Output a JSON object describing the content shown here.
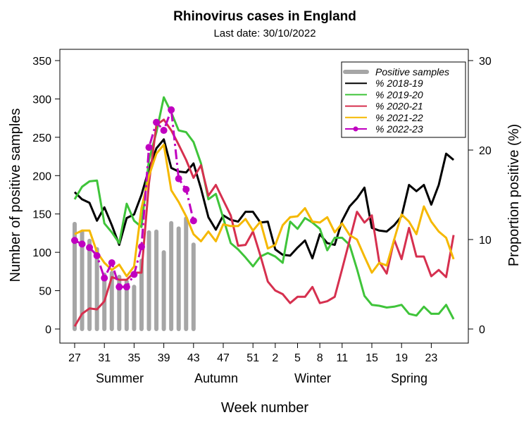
{
  "chart_data": {
    "type": "line",
    "title": "Rhinovirus cases in England",
    "subtitle": "Last date: 30/10/2022",
    "xlabel": "Week number",
    "ylabel_left": "Number of positive samples",
    "ylabel_right": "Proportion positive (%)",
    "ylim_left": [
      0,
      350
    ],
    "ylim_right": [
      0,
      30
    ],
    "yticks_left": [
      0,
      50,
      100,
      150,
      200,
      250,
      300,
      350
    ],
    "yticks_right": [
      0,
      10,
      20,
      30
    ],
    "weeks": [
      27,
      28,
      29,
      30,
      31,
      32,
      33,
      34,
      35,
      36,
      37,
      38,
      39,
      40,
      41,
      42,
      43,
      44,
      45,
      46,
      47,
      48,
      49,
      50,
      51,
      52,
      1,
      2,
      3,
      4,
      5,
      6,
      7,
      8,
      9,
      10,
      11,
      12,
      13,
      14,
      15,
      16,
      17,
      18,
      19,
      20,
      21,
      22,
      23,
      24,
      25,
      26
    ],
    "xtick_labels": [
      "27",
      "31",
      "35",
      "39",
      "43",
      "47",
      "51",
      "2",
      "5",
      "8",
      "11",
      "15",
      "19",
      "23"
    ],
    "seasons": [
      "Summer",
      "Autumn",
      "Winter",
      "Spring"
    ],
    "grid": false,
    "legend_position": "top-right",
    "bars": {
      "name": "Positive samples",
      "axis": "left",
      "color": "#a6a6a6",
      "values": [
        137,
        127,
        115,
        104,
        71,
        73,
        68,
        62,
        55,
        89,
        126,
        127,
        100,
        138,
        131,
        144,
        110
      ]
    },
    "series": [
      {
        "name": "% 2018-19",
        "axis": "right",
        "color": "#000000",
        "style": "solid",
        "values": [
          15.3,
          14.5,
          14.1,
          12.1,
          13.6,
          11.6,
          9.4,
          12.4,
          12.8,
          15.0,
          17.9,
          20.2,
          21.2,
          18.0,
          17.6,
          17.5,
          18.5,
          15.7,
          12.5,
          11.1,
          12.7,
          12.2,
          12.0,
          13.1,
          13.1,
          11.9,
          12.0,
          8.9,
          8.3,
          8.2,
          9.1,
          9.9,
          7.9,
          10.6,
          9.6,
          9.4,
          12.1,
          13.7,
          14.6,
          15.8,
          11.3,
          11.0,
          10.9,
          11.6,
          12.6,
          16.1,
          15.4,
          16.1,
          13.9,
          16.1,
          19.6,
          18.9
        ]
      },
      {
        "name": "% 2019-20",
        "axis": "right",
        "color": "#3fc43a",
        "style": "solid",
        "values": [
          14.5,
          15.9,
          16.5,
          16.6,
          11.8,
          10.8,
          9.6,
          14.0,
          12.1,
          11.4,
          18.9,
          22.0,
          25.9,
          24.2,
          22.2,
          22.0,
          20.9,
          18.5,
          14.5,
          15.1,
          12.4,
          9.6,
          8.9,
          8.0,
          7.0,
          8.1,
          8.5,
          8.1,
          7.4,
          12.0,
          11.2,
          12.4,
          11.9,
          11.2,
          8.8,
          10.2,
          10.2,
          9.4,
          6.7,
          3.7,
          2.7,
          2.6,
          2.4,
          2.5,
          2.7,
          1.7,
          1.5,
          2.5,
          1.7,
          1.7,
          2.7,
          1.1
        ]
      },
      {
        "name": "% 2020-21",
        "axis": "right",
        "color": "#d6304f",
        "style": "solid",
        "values": [
          0.3,
          1.7,
          2.3,
          2.2,
          3.1,
          5.8,
          5.5,
          5.5,
          6.3,
          6.3,
          16.3,
          22.8,
          23.4,
          22.2,
          20.6,
          18.9,
          16.9,
          18.3,
          14.9,
          16.1,
          14.4,
          12.7,
          9.3,
          9.4,
          10.9,
          8.2,
          5.3,
          4.3,
          3.9,
          2.9,
          3.6,
          3.6,
          4.7,
          2.9,
          3.1,
          3.6,
          6.7,
          9.9,
          13.1,
          11.9,
          12.7,
          7.5,
          6.2,
          10.0,
          7.8,
          11.3,
          8.1,
          8.1,
          5.9,
          6.6,
          5.8,
          10.5
        ]
      },
      {
        "name": "% 2021-22",
        "axis": "right",
        "color": "#f5b800",
        "style": "solid",
        "values": [
          10.6,
          11.0,
          11.0,
          8.6,
          7.4,
          6.6,
          7.2,
          5.9,
          7.0,
          13.5,
          17.1,
          19.6,
          20.6,
          15.5,
          14.2,
          12.6,
          10.6,
          9.8,
          10.9,
          9.8,
          11.7,
          11.5,
          11.5,
          12.3,
          11.0,
          12.0,
          9.0,
          9.4,
          11.6,
          12.5,
          12.6,
          13.5,
          12.0,
          11.9,
          12.5,
          10.8,
          11.8,
          10.5,
          10.0,
          8.1,
          6.3,
          7.4,
          7.1,
          10.0,
          12.8,
          12.0,
          10.6,
          13.7,
          12.0,
          10.9,
          10.2,
          7.8
        ]
      },
      {
        "name": "% 2022-23",
        "axis": "right",
        "color": "#c000c0",
        "style": "dashdot-points",
        "values": [
          9.9,
          9.5,
          9.1,
          8.2,
          5.7,
          7.4,
          4.7,
          4.7,
          6.1,
          9.2,
          20.3,
          23.1,
          22.2,
          24.5,
          16.8,
          15.6,
          12.1
        ]
      }
    ]
  }
}
